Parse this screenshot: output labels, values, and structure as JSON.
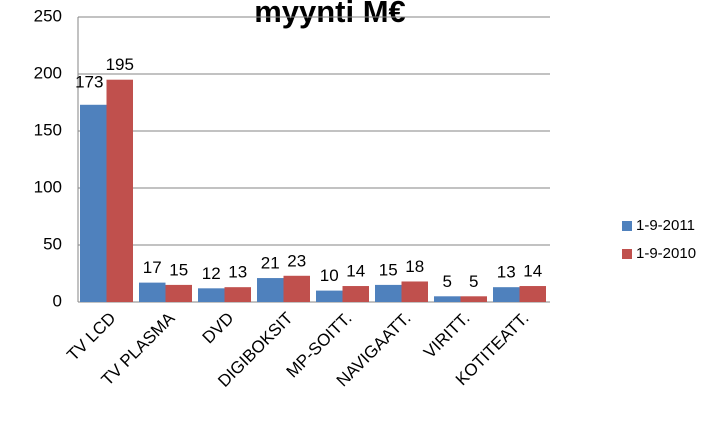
{
  "chart_data": {
    "type": "bar",
    "title": "myynti  M€",
    "categories": [
      "TV LCD",
      "TV PLASMA",
      "DVD",
      "DIGIBOKSIT",
      "MP-SOITT.",
      "NAVIGAATT.",
      "VIRITT.",
      "KOTITEATT."
    ],
    "series": [
      {
        "name": "1-9-2011",
        "color": "#4f81bd",
        "values": [
          173,
          17,
          12,
          21,
          10,
          15,
          5,
          13
        ]
      },
      {
        "name": "1-9-2010",
        "color": "#c0504d",
        "values": [
          195,
          15,
          13,
          23,
          14,
          18,
          5,
          14
        ]
      }
    ],
    "ylim": [
      0,
      250
    ],
    "yticks": [
      0,
      50,
      100,
      150,
      200,
      250
    ],
    "grid": true,
    "legend": "right"
  }
}
